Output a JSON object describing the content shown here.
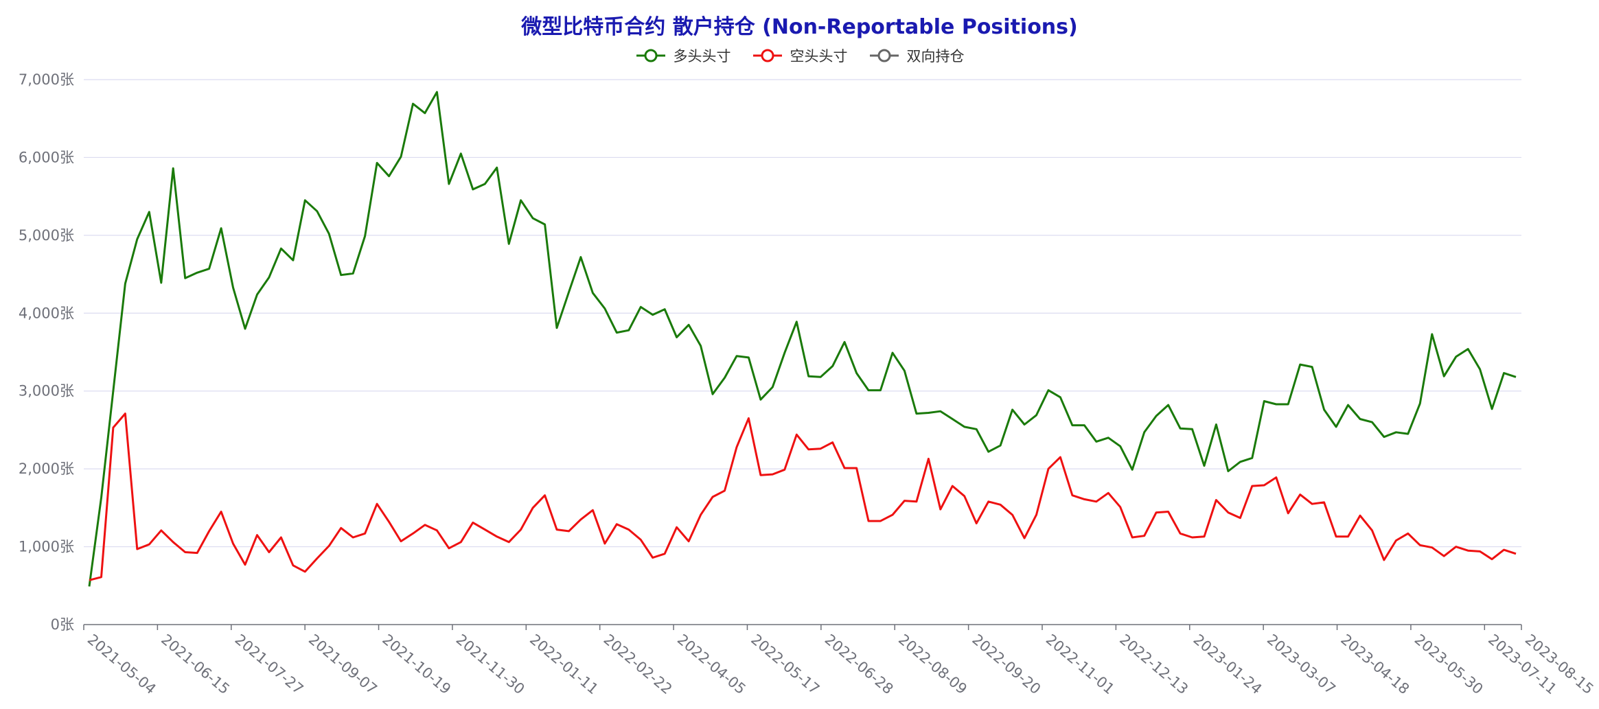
{
  "chart_data": {
    "type": "line",
    "title": "微型比特币合约 散户持仓 (Non-Reportable Positions)",
    "y_unit": "张",
    "ylim": [
      0,
      7000
    ],
    "y_ticks": [
      0,
      1000,
      2000,
      3000,
      4000,
      5000,
      6000,
      7000
    ],
    "y_tick_labels": [
      "0张",
      "1,000张",
      "2,000张",
      "3,000张",
      "4,000张",
      "5,000张",
      "6,000张",
      "7,000张"
    ],
    "x_tick_labels": [
      "2021-05-04",
      "2021-06-15",
      "2021-07-27",
      "2021-09-07",
      "2021-10-19",
      "2021-11-30",
      "2022-01-11",
      "2022-02-22",
      "2022-04-05",
      "2022-05-17",
      "2022-06-28",
      "2022-08-09",
      "2022-09-20",
      "2022-11-01",
      "2022-12-13",
      "2023-01-24",
      "2023-03-07",
      "2023-04-18",
      "2023-05-30",
      "2023-07-11",
      "2023-08-15"
    ],
    "x_start": "2021-05-04",
    "x_end": "2023-08-15",
    "legend_position": "top-center",
    "grid": true,
    "series": [
      {
        "name": "多头头寸",
        "color": "#1a7a0a",
        "values": [
          490,
          1630,
          3000,
          4380,
          4950,
          5300,
          4390,
          5860,
          4450,
          4520,
          4570,
          5090,
          4330,
          3800,
          4240,
          4460,
          4830,
          4680,
          5450,
          5310,
          5020,
          4490,
          4510,
          4990,
          5930,
          5760,
          6010,
          6690,
          6570,
          6840,
          5660,
          6050,
          5590,
          5660,
          5870,
          4890,
          5450,
          5220,
          5140,
          3810,
          4270,
          4720,
          4260,
          4060,
          3750,
          3780,
          4080,
          3980,
          4050,
          3690,
          3850,
          3580,
          2960,
          3170,
          3450,
          3430,
          2890,
          3050,
          3490,
          3890,
          3190,
          3180,
          3320,
          3630,
          3230,
          3010,
          3010,
          3490,
          3260,
          2710,
          2720,
          2740,
          2640,
          2540,
          2510,
          2220,
          2300,
          2760,
          2570,
          2690,
          3010,
          2920,
          2560,
          2560,
          2350,
          2400,
          2290,
          1990,
          2470,
          2680,
          2820,
          2520,
          2510,
          2040,
          2570,
          1970,
          2090,
          2140,
          2870,
          2830,
          2830,
          3340,
          3310,
          2760,
          2540,
          2820,
          2640,
          2600,
          2410,
          2470,
          2450,
          2840,
          3730,
          3190,
          3440,
          3540,
          3280,
          2770,
          3230,
          3180
        ]
      },
      {
        "name": "空头头寸",
        "color": "#ee1111",
        "values": [
          570,
          610,
          2530,
          2710,
          970,
          1030,
          1210,
          1060,
          930,
          920,
          1200,
          1450,
          1040,
          770,
          1150,
          930,
          1120,
          760,
          680,
          850,
          1010,
          1240,
          1120,
          1170,
          1550,
          1320,
          1070,
          1170,
          1280,
          1210,
          980,
          1060,
          1310,
          1220,
          1130,
          1060,
          1220,
          1500,
          1660,
          1220,
          1200,
          1350,
          1470,
          1040,
          1290,
          1220,
          1090,
          860,
          910,
          1250,
          1070,
          1410,
          1640,
          1720,
          2280,
          2650,
          1920,
          1930,
          1990,
          2440,
          2250,
          2260,
          2340,
          2010,
          2010,
          1330,
          1330,
          1410,
          1590,
          1580,
          2130,
          1480,
          1780,
          1650,
          1300,
          1580,
          1540,
          1410,
          1110,
          1410,
          2000,
          2150,
          1660,
          1610,
          1580,
          1690,
          1510,
          1120,
          1140,
          1440,
          1450,
          1170,
          1120,
          1130,
          1600,
          1440,
          1370,
          1780,
          1790,
          1890,
          1430,
          1670,
          1550,
          1570,
          1130,
          1130,
          1400,
          1210,
          830,
          1080,
          1170,
          1020,
          990,
          880,
          1000,
          950,
          940,
          840,
          960,
          910
        ]
      },
      {
        "name": "双向持仓",
        "color": "#666666",
        "values": []
      }
    ]
  }
}
